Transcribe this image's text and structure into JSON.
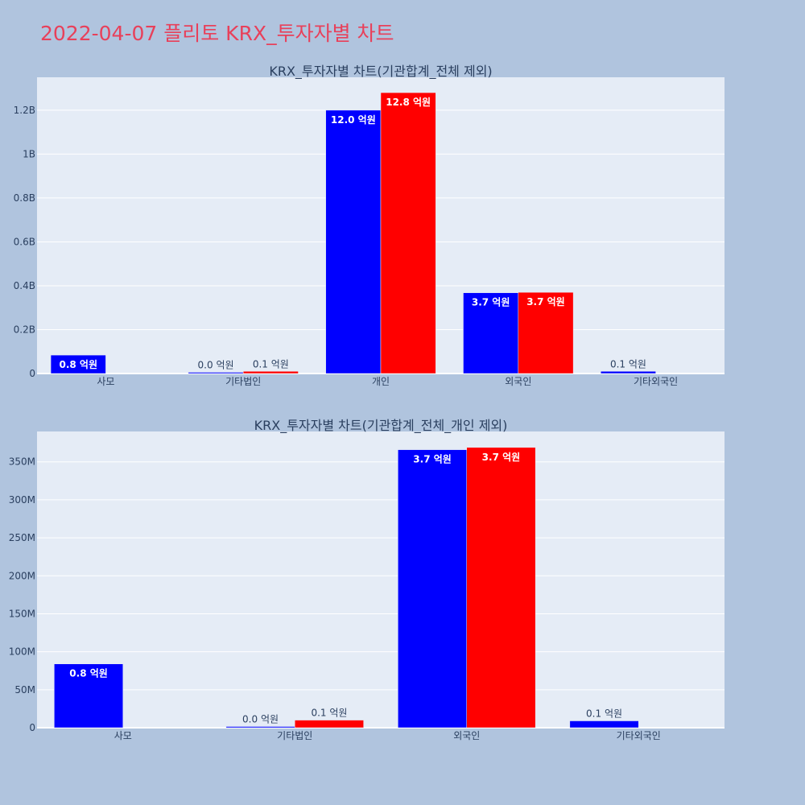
{
  "page_title": "2022-04-07 플리토 KRX_투자자별 차트",
  "colors": {
    "background": "#b0c4de",
    "plot_bg": "#e5ecf6",
    "sell": "#0000ff",
    "buy": "#ff0000",
    "title": "#e8405a"
  },
  "chart_data": [
    {
      "type": "bar",
      "title": "KRX_투자자별 차트(기관합계_전체 제외)",
      "categories": [
        "사모",
        "기타법인",
        "개인",
        "외국인",
        "기타외국인"
      ],
      "series": [
        {
          "color": "#0000ff",
          "values": [
            84000000,
            1000000,
            1200000000,
            368000000,
            10000000
          ],
          "labels": [
            "0.8 억원",
            "0.0 억원",
            "12.0 억원",
            "3.7 억원",
            "0.1 억원"
          ]
        },
        {
          "color": "#ff0000",
          "values": [
            0,
            10000000,
            1280000000,
            370000000,
            0
          ],
          "labels": [
            "",
            "0.1 억원",
            "12.8 억원",
            "3.7 억원",
            ""
          ]
        }
      ],
      "yticks": [
        0,
        200000000,
        400000000,
        600000000,
        800000000,
        1000000000,
        1200000000
      ],
      "ytick_labels": [
        "0",
        "0.2B",
        "0.4B",
        "0.6B",
        "0.8B",
        "1B",
        "1.2B"
      ],
      "ylim": [
        0,
        1350000000
      ],
      "grid": true,
      "legend": "none"
    },
    {
      "type": "bar",
      "title": "KRX_투자자별 차트(기관합계_전체_개인 제외)",
      "categories": [
        "사모",
        "기타법인",
        "외국인",
        "기타외국인"
      ],
      "series": [
        {
          "color": "#0000ff",
          "values": [
            84000000,
            1000000,
            366000000,
            9000000
          ],
          "labels": [
            "0.8 억원",
            "0.0 억원",
            "3.7 억원",
            "0.1 억원"
          ]
        },
        {
          "color": "#ff0000",
          "values": [
            0,
            10000000,
            369000000,
            0
          ],
          "labels": [
            "",
            "0.1 억원",
            "3.7 억원",
            ""
          ]
        }
      ],
      "yticks": [
        0,
        50000000,
        100000000,
        150000000,
        200000000,
        250000000,
        300000000,
        350000000
      ],
      "ytick_labels": [
        "0",
        "50M",
        "100M",
        "150M",
        "200M",
        "250M",
        "300M",
        "350M"
      ],
      "ylim": [
        0,
        390000000
      ],
      "grid": true,
      "legend": "none"
    }
  ]
}
